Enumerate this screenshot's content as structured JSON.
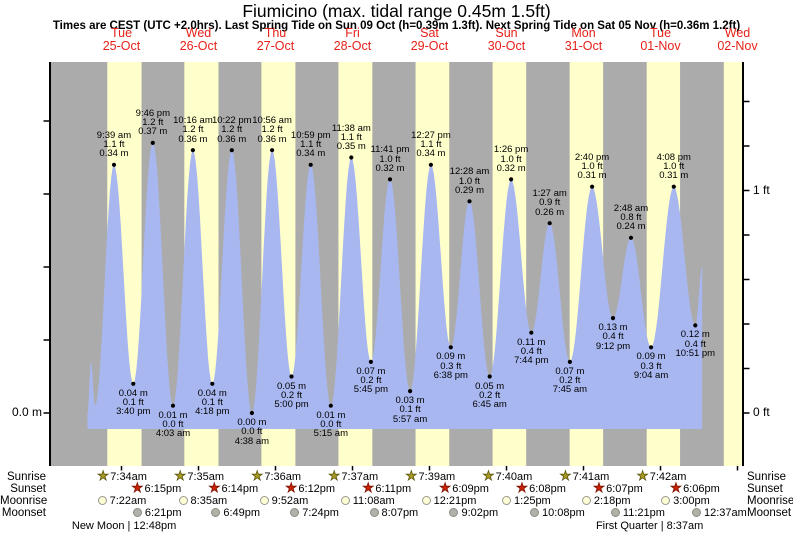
{
  "header": {
    "title": "Fiumicino (max. tidal range 0.45m 1.5ft)",
    "subtitle": "Times are CEST (UTC +2.0hrs). Last Spring Tide on Sun 09 Oct (h=0.39m 1.3ft). Next Spring Tide on Sat 05 Nov (h=0.36m 1.2ft)"
  },
  "days": [
    {
      "name": "Tue",
      "date": "25-Oct"
    },
    {
      "name": "Wed",
      "date": "26-Oct"
    },
    {
      "name": "Thu",
      "date": "27-Oct"
    },
    {
      "name": "Fri",
      "date": "28-Oct"
    },
    {
      "name": "Sat",
      "date": "29-Oct"
    },
    {
      "name": "Sun",
      "date": "30-Oct"
    },
    {
      "name": "Mon",
      "date": "31-Oct"
    },
    {
      "name": "Tue",
      "date": "01-Nov"
    },
    {
      "name": "Wed",
      "date": "02-Nov"
    }
  ],
  "axis": {
    "left_label": "0.0 m",
    "right_top": "1 ft",
    "right_bottom": "0 ft"
  },
  "chart_data": {
    "type": "area",
    "title": "Fiumicino tide height",
    "ylabel_left": "m",
    "ylabel_right": "ft",
    "ylim_m": [
      0,
      0.45
    ],
    "categories": [
      "Tue 25-Oct",
      "Wed 26-Oct",
      "Thu 27-Oct",
      "Fri 28-Oct",
      "Sat 29-Oct",
      "Sun 30-Oct",
      "Mon 31-Oct",
      "Tue 01-Nov",
      "Wed 02-Nov"
    ],
    "tide_events": [
      {
        "day": 0,
        "hour": 1.4,
        "height_m": 0.0,
        "type": "start",
        "labeled": false
      },
      {
        "day": 0,
        "hour": 2.5,
        "height_m": 0.07,
        "type": "high",
        "labeled": false
      },
      {
        "day": 0,
        "hour": 3.75,
        "height_m": 0.01,
        "type": "low",
        "labeled": false
      },
      {
        "day": 0,
        "time": "9:39 am",
        "height_m": 0.34,
        "height_ft": 1.1,
        "type": "high",
        "labeled": true
      },
      {
        "day": 0,
        "time": "3:40 pm",
        "height_m": 0.04,
        "height_ft": 0.1,
        "type": "low",
        "labeled": true
      },
      {
        "day": 0,
        "time": "9:46 pm",
        "height_m": 0.37,
        "height_ft": 1.2,
        "type": "high",
        "labeled": true
      },
      {
        "day": 1,
        "time": "4:03 am",
        "height_m": 0.01,
        "height_ft": 0.0,
        "type": "low",
        "labeled": true
      },
      {
        "day": 1,
        "time": "10:16 am",
        "height_m": 0.36,
        "height_ft": 1.2,
        "type": "high",
        "labeled": true
      },
      {
        "day": 1,
        "time": "4:18 pm",
        "height_m": 0.04,
        "height_ft": 0.1,
        "type": "low",
        "labeled": true
      },
      {
        "day": 1,
        "time": "10:22 pm",
        "height_m": 0.36,
        "height_ft": 1.2,
        "type": "high",
        "labeled": true
      },
      {
        "day": 2,
        "time": "4:38 am",
        "height_m": 0.0,
        "height_ft": 0.0,
        "type": "low",
        "labeled": true
      },
      {
        "day": 2,
        "time": "10:56 am",
        "height_m": 0.36,
        "height_ft": 1.2,
        "type": "high",
        "labeled": true
      },
      {
        "day": 2,
        "time": "5:00 pm",
        "height_m": 0.05,
        "height_ft": 0.2,
        "type": "low",
        "labeled": true
      },
      {
        "day": 2,
        "time": "10:59 pm",
        "height_m": 0.34,
        "height_ft": 1.1,
        "type": "high",
        "labeled": true
      },
      {
        "day": 3,
        "time": "5:15 am",
        "height_m": 0.01,
        "height_ft": 0.0,
        "type": "low",
        "labeled": true
      },
      {
        "day": 3,
        "time": "11:38 am",
        "height_m": 0.35,
        "height_ft": 1.1,
        "type": "high",
        "labeled": true
      },
      {
        "day": 3,
        "time": "5:45 pm",
        "height_m": 0.07,
        "height_ft": 0.2,
        "type": "low",
        "labeled": true
      },
      {
        "day": 3,
        "time": "11:41 pm",
        "height_m": 0.32,
        "height_ft": 1.0,
        "type": "high",
        "labeled": true
      },
      {
        "day": 4,
        "time": "5:57 am",
        "height_m": 0.03,
        "height_ft": 0.1,
        "type": "low",
        "labeled": true
      },
      {
        "day": 4,
        "time": "12:27 pm",
        "height_m": 0.34,
        "height_ft": 1.1,
        "type": "high",
        "labeled": true
      },
      {
        "day": 4,
        "time": "6:38 pm",
        "height_m": 0.09,
        "height_ft": 0.3,
        "type": "low",
        "labeled": true
      },
      {
        "day": 5,
        "time": "12:28 am",
        "height_m": 0.29,
        "height_ft": 1.0,
        "type": "high",
        "labeled": true
      },
      {
        "day": 5,
        "time": "6:45 am",
        "height_m": 0.05,
        "height_ft": 0.2,
        "type": "low",
        "labeled": true
      },
      {
        "day": 5,
        "time": "1:26 pm",
        "height_m": 0.32,
        "height_ft": 1.0,
        "type": "high",
        "labeled": true
      },
      {
        "day": 5,
        "time": "7:44 pm",
        "height_m": 0.11,
        "height_ft": 0.4,
        "type": "low",
        "labeled": true
      },
      {
        "day": 6,
        "time": "1:27 am",
        "height_m": 0.26,
        "height_ft": 0.9,
        "type": "high",
        "labeled": true
      },
      {
        "day": 6,
        "time": "7:45 am",
        "height_m": 0.07,
        "height_ft": 0.2,
        "type": "low",
        "labeled": true
      },
      {
        "day": 6,
        "time": "2:40 pm",
        "height_m": 0.31,
        "height_ft": 1.0,
        "type": "high",
        "labeled": true
      },
      {
        "day": 6,
        "time": "9:12 pm",
        "height_m": 0.13,
        "height_ft": 0.4,
        "type": "low",
        "labeled": true
      },
      {
        "day": 7,
        "time": "2:48 am",
        "height_m": 0.24,
        "height_ft": 0.8,
        "type": "high",
        "labeled": true
      },
      {
        "day": 7,
        "time": "9:04 am",
        "height_m": 0.09,
        "height_ft": 0.3,
        "type": "low",
        "labeled": true
      },
      {
        "day": 7,
        "time": "4:08 pm",
        "height_m": 0.31,
        "height_ft": 1.0,
        "type": "high",
        "labeled": true
      },
      {
        "day": 7,
        "time": "10:51 pm",
        "height_m": 0.12,
        "height_ft": 0.4,
        "type": "low",
        "labeled": true
      },
      {
        "day": 8,
        "hour": 1.0,
        "height_m": 0.2,
        "type": "end",
        "labeled": false
      }
    ]
  },
  "almanac": {
    "rows": [
      {
        "label": "Sunrise",
        "marker": "sun-star",
        "entries": [
          {
            "day": 0,
            "time": "7:34am"
          },
          {
            "day": 1,
            "time": "7:35am"
          },
          {
            "day": 2,
            "time": "7:36am"
          },
          {
            "day": 3,
            "time": "7:37am"
          },
          {
            "day": 4,
            "time": "7:39am"
          },
          {
            "day": 5,
            "time": "7:40am"
          },
          {
            "day": 6,
            "time": "7:41am"
          },
          {
            "day": 7,
            "time": "7:42am"
          }
        ]
      },
      {
        "label": "Sunset",
        "marker": "sunset-star",
        "entries": [
          {
            "day": 0,
            "time": "6:15pm"
          },
          {
            "day": 1,
            "time": "6:14pm"
          },
          {
            "day": 2,
            "time": "6:12pm"
          },
          {
            "day": 3,
            "time": "6:11pm"
          },
          {
            "day": 4,
            "time": "6:09pm"
          },
          {
            "day": 5,
            "time": "6:08pm"
          },
          {
            "day": 6,
            "time": "6:07pm"
          },
          {
            "day": 7,
            "time": "6:06pm"
          }
        ]
      },
      {
        "label": "Moonrise",
        "marker": "moonrise-circle",
        "entries": [
          {
            "day": 0,
            "time": "7:22am"
          },
          {
            "day": 1,
            "time": "8:35am"
          },
          {
            "day": 2,
            "time": "9:52am"
          },
          {
            "day": 3,
            "time": "11:08am"
          },
          {
            "day": 4,
            "time": "12:21pm"
          },
          {
            "day": 5,
            "time": "1:25pm"
          },
          {
            "day": 6,
            "time": "2:18pm"
          },
          {
            "day": 7,
            "time": "3:00pm"
          }
        ]
      },
      {
        "label": "Moonset",
        "marker": "moonset-circle",
        "entries": [
          {
            "day": 0,
            "time": "6:21pm"
          },
          {
            "day": 1,
            "time": "6:49pm"
          },
          {
            "day": 2,
            "time": "7:24pm"
          },
          {
            "day": 3,
            "time": "8:07pm"
          },
          {
            "day": 4,
            "time": "9:02pm"
          },
          {
            "day": 5,
            "time": "10:08pm"
          },
          {
            "day": 6,
            "time": "11:21pm"
          },
          {
            "day": 7,
            "time": "12:37am",
            "shift": 1
          }
        ]
      }
    ],
    "phases": [
      {
        "day": 0,
        "text": "New Moon | 12:48pm"
      },
      {
        "day": 7,
        "text": "First Quarter | 8:37am"
      }
    ]
  },
  "colors": {
    "daylight_band": "#ffffcc",
    "night_band": "#ababab",
    "tide_fill": "#a9b7f0",
    "date_text": "#e62119",
    "sunrise_star": "#a89b22",
    "sunrise_star_edge": "#5f560f",
    "sunset_star": "#cc2104",
    "sunset_star_edge": "#7a1200",
    "moonrise_fill": "#ffffd6",
    "moonrise_edge": "#98988c",
    "moonset_fill": "#b1b1aa",
    "moonset_edge": "#8c8c85",
    "axis": "#000000"
  }
}
